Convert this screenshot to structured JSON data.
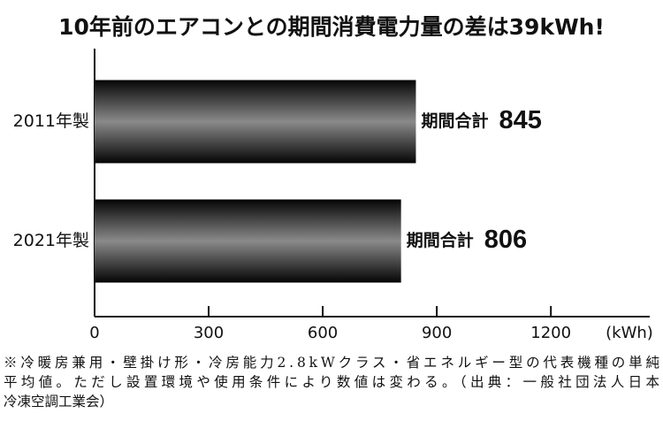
{
  "chart_data": {
    "type": "bar",
    "orientation": "horizontal",
    "title": "10年前のエアコンとの期間消費電力量の差は39kWh!",
    "categories": [
      "2011年製",
      "2021年製"
    ],
    "values": [
      845,
      806
    ],
    "bar_label_prefix": "期間合計",
    "x_label": "(kWh)",
    "xlim": [
      0,
      1460
    ],
    "xticks": [
      0,
      300,
      600,
      900,
      1200
    ],
    "note_lines": [
      "※冷暖房兼用・壁掛け形・冷房能力2.8kWクラス・省エネルギー型の代表機種の単純",
      "平均値。ただし設置環境や使用条件により数値は変わる。（出典：一般社団法人日本",
      "冷凍空調工業会）"
    ]
  }
}
